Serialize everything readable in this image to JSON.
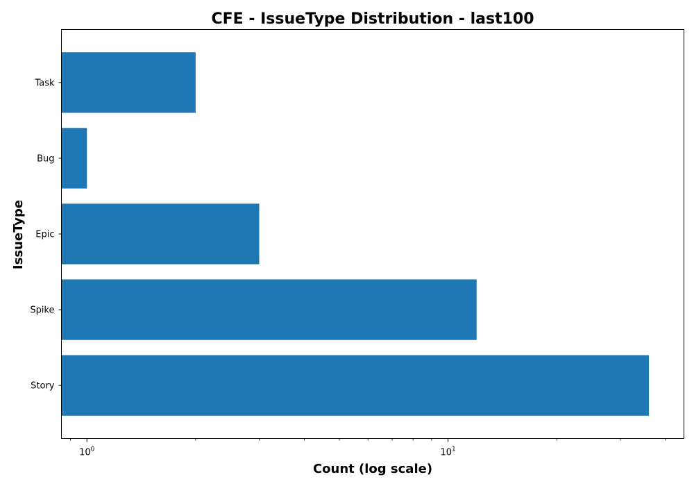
{
  "chart_data": {
    "type": "bar",
    "orientation": "horizontal",
    "title": "CFE - IssueType Distribution - last100",
    "xlabel": "Count (log scale)",
    "ylabel": "IssueType",
    "xscale": "log",
    "xlim": [
      0.85,
      45
    ],
    "categories": [
      "Story",
      "Spike",
      "Epic",
      "Bug",
      "Task"
    ],
    "values": [
      36,
      12,
      3,
      1,
      2
    ],
    "x_major_ticks": [
      {
        "value": 1,
        "base": "10",
        "exp": "0"
      },
      {
        "value": 10,
        "base": "10",
        "exp": "1"
      }
    ],
    "bar_color": "#1f77b4",
    "grid": false,
    "legend": "none"
  }
}
